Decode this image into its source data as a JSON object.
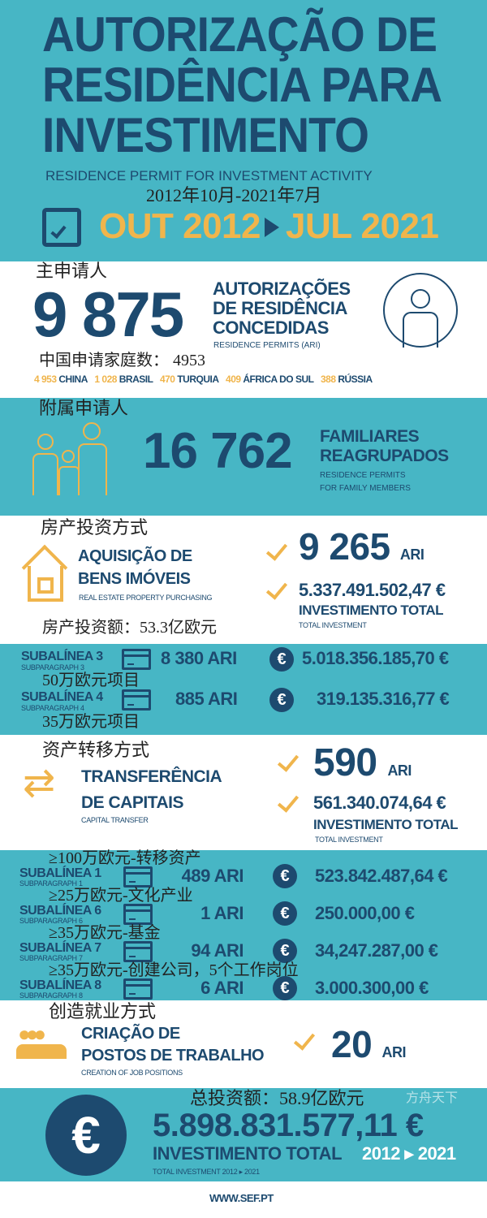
{
  "colors": {
    "teal": "#47b6c5",
    "navy": "#1d4a6f",
    "gold": "#f0b54c"
  },
  "header": {
    "title_lines": [
      "AUTORIZAÇÃO DE",
      "RESIDÊNCIA PARA",
      "INVESTIMENTO"
    ],
    "subtitle": "RESIDENCE PERMIT FOR INVESTMENT ACTIVITY",
    "cn_period": "2012年10月-2021年7月",
    "period_start": "OUT 2012",
    "period_end": "JUL 2021",
    "icon": "calendar-check-icon"
  },
  "main_applicants": {
    "cn_label": "主申请人",
    "count": "9 875",
    "title_lines": [
      "AUTORIZAÇÕES",
      "DE RESIDÊNCIA",
      "CONCEDIDAS"
    ],
    "subtitle": "RESIDENCE PERMITS (ARI)",
    "cn_china": "中国申请家庭数：  4953",
    "countries": [
      {
        "n": "4 953",
        "name": "CHINA"
      },
      {
        "n": "1 028",
        "name": "BRASIL"
      },
      {
        "n": "470",
        "name": "TURQUIA"
      },
      {
        "n": "409",
        "name": "ÁFRICA DO SUL"
      },
      {
        "n": "388",
        "name": "RÚSSIA"
      }
    ],
    "icon": "person-icon"
  },
  "family": {
    "cn_label": "附属申请人",
    "count": "16 762",
    "title_lines": [
      "FAMILIARES",
      "REAGRUPADOS"
    ],
    "subtitle_lines": [
      "RESIDENCE PERMITS",
      "FOR FAMILY MEMBERS"
    ],
    "icon": "family-icon"
  },
  "real_estate": {
    "cn_label": "房产投资方式",
    "title_lines": [
      "AQUISIÇÃO DE",
      "BENS IMÓVEIS"
    ],
    "subtitle": "REAL ESTATE PROPERTY PURCHASING",
    "count": "9 265",
    "unit": "ARI",
    "amount": "5.337.491.502,47 €",
    "total_label": "INVESTIMENTO TOTAL",
    "total_sub": "TOTAL INVESTMENT",
    "cn_amount": "房产投资额：53.3亿欧元",
    "icon": "house-icon"
  },
  "real_estate_sub": [
    {
      "name": "SUBALÍNEA 3",
      "sub": "SUBPARAGRAPH 3",
      "ari": "8 380 ARI",
      "amount": "5.018.356.185,70 €",
      "cn": "50万欧元项目"
    },
    {
      "name": "SUBALÍNEA 4",
      "sub": "SUBPARAGRAPH 4",
      "ari": "885 ARI",
      "amount": "319.135.316,77 €",
      "cn": "35万欧元项目"
    }
  ],
  "capital": {
    "cn_label": "资产转移方式",
    "title_lines": [
      "TRANSFERÊNCIA",
      "DE CAPITAIS"
    ],
    "subtitle": "CAPITAL TRANSFER",
    "count": "590",
    "unit": "ARI",
    "amount": "561.340.074,64 €",
    "total_label": "INVESTIMENTO TOTAL",
    "total_sub": "TOTAL INVESTMENT",
    "icon": "transfer-arrows-icon"
  },
  "capital_sub": [
    {
      "name": "SUBALÍNEA 1",
      "sub": "SUBPARAGRAPH 1",
      "ari": "489 ARI",
      "amount": "523.842.487,64 €",
      "cn": "≥100万欧元-转移资产"
    },
    {
      "name": "SUBALÍNEA 6",
      "sub": "SUBPARAGRAPH 6",
      "ari": "1 ARI",
      "amount": "250.000,00 €",
      "cn": "≥25万欧元-文化产业"
    },
    {
      "name": "SUBALÍNEA 7",
      "sub": "SUBPARAGRAPH 7",
      "ari": "94 ARI",
      "amount": "34,247.287,00 €",
      "cn": "≥35万欧元-基金"
    },
    {
      "name": "SUBALÍNEA 8",
      "sub": "SUBPARAGRAPH 8",
      "ari": "6 ARI",
      "amount": "3.000.300,00 €",
      "cn": "≥35万欧元-创建公司，5个工作岗位"
    }
  ],
  "jobs": {
    "cn_label": "创造就业方式",
    "title_lines": [
      "CRIAÇÃO DE",
      "POSTOS DE TRABALHO"
    ],
    "subtitle": "CREATION OF JOB POSITIONS",
    "count": "20",
    "unit": "ARI",
    "icon": "people-group-icon"
  },
  "total": {
    "cn_label": "总投资额：58.9亿欧元",
    "amount": "5.898.831.577,11 €",
    "label": "INVESTIMENTO TOTAL",
    "years": "2012 ▸ 2021",
    "sub": "TOTAL INVESTMENT 2012 ▸ 2021",
    "watermark": "方舟天下",
    "icon": "euro-icon"
  },
  "footer": {
    "url": "WWW.SEF.PT"
  }
}
